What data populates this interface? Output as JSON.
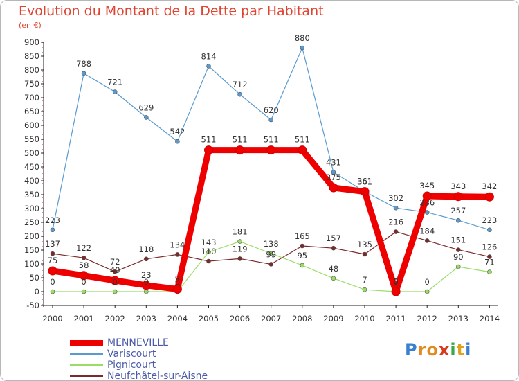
{
  "title": "Evolution du Montant de la Dette par Habitant",
  "subtitle": "(en €)",
  "chart_data": {
    "type": "line",
    "title": "Evolution du Montant de la Dette par Habitant",
    "subtitle": "(en €)",
    "categories": [
      "2000",
      "2001",
      "2002",
      "2003",
      "2004",
      "2005",
      "2006",
      "2007",
      "2008",
      "2009",
      "2010",
      "2011",
      "2012",
      "2013",
      "2014"
    ],
    "ylim": [
      -50,
      900
    ],
    "yticks": [
      -50,
      0,
      50,
      100,
      150,
      200,
      250,
      300,
      350,
      400,
      450,
      500,
      550,
      600,
      650,
      700,
      750,
      800,
      850,
      900
    ],
    "grid": false,
    "legend_position": "bottom-left",
    "series": [
      {
        "name": "MENNEVILLE",
        "color": "#ee0000",
        "values": [
          75,
          58,
          40,
          23,
          9,
          511,
          511,
          511,
          511,
          375,
          361,
          0,
          345,
          343,
          342
        ],
        "labels": [
          "75",
          "58",
          "40",
          "23",
          "9",
          "511",
          "511",
          "511",
          "511",
          "375",
          "361",
          "0",
          "345",
          "343",
          "342"
        ]
      },
      {
        "name": "Variscourt",
        "color": "#5a9ad0",
        "values": [
          223,
          788,
          721,
          629,
          542,
          814,
          712,
          620,
          880,
          431,
          361,
          302,
          286,
          257,
          223
        ],
        "labels": [
          "223",
          "788",
          "721",
          "629",
          "542",
          "814",
          "712",
          "620",
          "880",
          "431",
          "361",
          "302",
          "286",
          "257",
          "223"
        ]
      },
      {
        "name": "Pignicourt",
        "color": "#99dd66",
        "values": [
          0,
          0,
          0,
          0,
          0,
          143,
          181,
          138,
          95,
          48,
          7,
          0,
          0,
          90,
          71
        ],
        "labels": [
          "0",
          "0",
          "0",
          "0",
          "0",
          "143",
          "181",
          "138",
          "95",
          "48",
          "7",
          "0",
          "0",
          "90",
          "71"
        ]
      },
      {
        "name": "Neufchâtel-sur-Aisne",
        "color": "#7a2a2a",
        "values": [
          137,
          122,
          72,
          118,
          134,
          110,
          119,
          99,
          165,
          157,
          135,
          216,
          184,
          151,
          126
        ],
        "labels": [
          "137",
          "122",
          "72",
          "118",
          "134",
          "110",
          "119",
          "99",
          "165",
          "157",
          "135",
          "216",
          "184",
          "151",
          "126"
        ]
      }
    ]
  },
  "logo_letters": [
    {
      "ch": "P",
      "color": "#3a7fd0"
    },
    {
      "ch": "r",
      "color": "#e08a20"
    },
    {
      "ch": "o",
      "color": "#e08a20"
    },
    {
      "ch": "x",
      "color": "#d83a20"
    },
    {
      "ch": "i",
      "color": "#3aa84a"
    },
    {
      "ch": "t",
      "color": "#e0a020"
    },
    {
      "ch": "i",
      "color": "#3a7fd0"
    }
  ]
}
